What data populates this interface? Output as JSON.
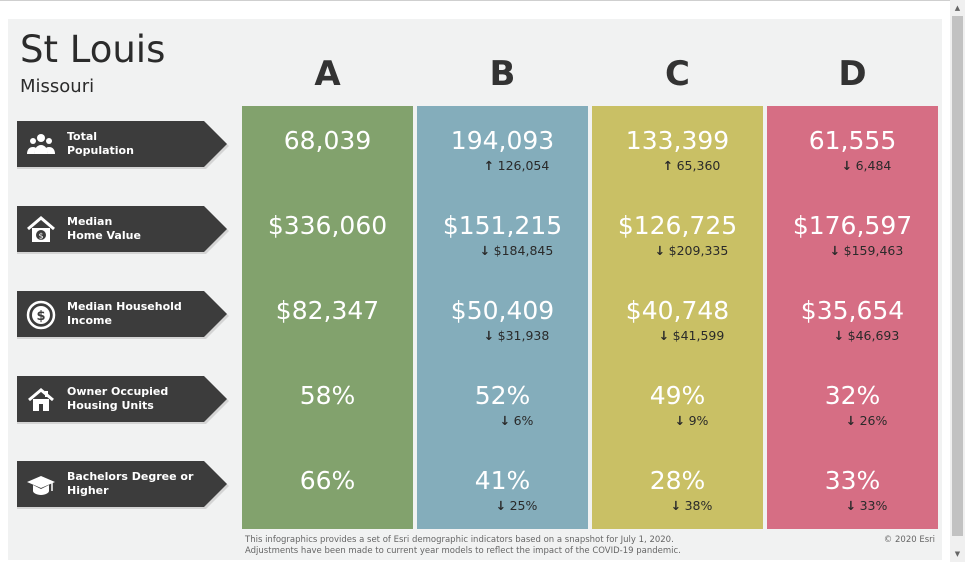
{
  "header": {
    "city": "St Louis",
    "state": "Missouri"
  },
  "columns": [
    {
      "letter": "A",
      "color": "#82a26d",
      "cells": [
        {
          "value": "68,039",
          "change": ""
        },
        {
          "value": "$336,060",
          "change": ""
        },
        {
          "value": "$82,347",
          "change": ""
        },
        {
          "value": "58%",
          "change": ""
        },
        {
          "value": "66%",
          "change": ""
        }
      ],
      "arrows": [
        "",
        "",
        "",
        "",
        ""
      ]
    },
    {
      "letter": "B",
      "color": "#84adbb",
      "cells": [
        {
          "value": "194,093",
          "change": "126,054"
        },
        {
          "value": "$151,215",
          "change": "$184,845"
        },
        {
          "value": "$50,409",
          "change": "$31,938"
        },
        {
          "value": "52%",
          "change": "6%"
        },
        {
          "value": "41%",
          "change": "25%"
        }
      ],
      "arrows": [
        "up",
        "down",
        "down",
        "down",
        "down"
      ]
    },
    {
      "letter": "C",
      "color": "#c9c065",
      "cells": [
        {
          "value": "133,399",
          "change": "65,360"
        },
        {
          "value": "$126,725",
          "change": "$209,335"
        },
        {
          "value": "$40,748",
          "change": "$41,599"
        },
        {
          "value": "49%",
          "change": "9%"
        },
        {
          "value": "28%",
          "change": "38%"
        }
      ],
      "arrows": [
        "up",
        "down",
        "down",
        "down",
        "down"
      ]
    },
    {
      "letter": "D",
      "color": "#d66e84",
      "cells": [
        {
          "value": "61,555",
          "change": "6,484"
        },
        {
          "value": "$176,597",
          "change": "$159,463"
        },
        {
          "value": "$35,654",
          "change": "$46,693"
        },
        {
          "value": "32%",
          "change": "26%"
        },
        {
          "value": "33%",
          "change": "33%"
        }
      ],
      "arrows": [
        "down",
        "down",
        "down",
        "down",
        "down"
      ]
    }
  ],
  "rows": [
    {
      "label": "Total\nPopulation",
      "icon": "people-icon"
    },
    {
      "label": "Median\nHome Value",
      "icon": "house-dollar-icon"
    },
    {
      "label": "Median Household\nIncome",
      "icon": "dollar-coin-icon"
    },
    {
      "label": "Owner Occupied\nHousing Units",
      "icon": "house-icon"
    },
    {
      "label": "Bachelors Degree or\nHigher",
      "icon": "graduation-cap-icon"
    }
  ],
  "footer": {
    "line1": "This infographics provides a set of Esri demographic indicators based on a snapshot for July 1, 2020.",
    "line2": "Adjustments have been made to current year models to reflect the impact of the COVID-19 pandemic.",
    "copyright": "© 2020 Esri"
  },
  "colors": {
    "tag": "#3c3c3c",
    "panel": "#f1f2f2"
  }
}
